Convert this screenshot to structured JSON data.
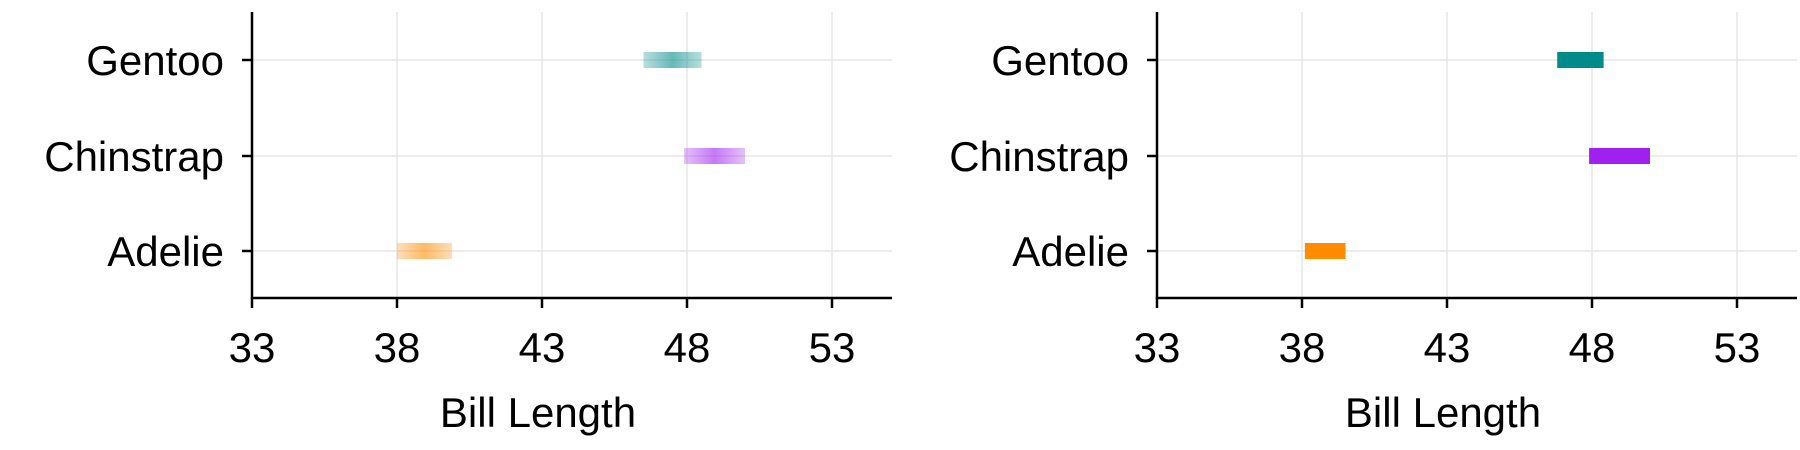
{
  "chart_data": [
    {
      "type": "interval",
      "style": "gradient",
      "xlabel": "Bill Length",
      "xlim": [
        33,
        55
      ],
      "xticks": [
        "33",
        "38",
        "43",
        "48",
        "53"
      ],
      "grid": true,
      "categories": [
        "Adelie",
        "Chinstrap",
        "Gentoo"
      ],
      "series": [
        {
          "category": "Adelie",
          "low": 38.0,
          "high": 39.9,
          "color": "#ff8c00"
        },
        {
          "category": "Chinstrap",
          "low": 47.9,
          "high": 50.0,
          "color": "#a020f0"
        },
        {
          "category": "Gentoo",
          "low": 46.5,
          "high": 48.5,
          "color": "#008b8b"
        }
      ]
    },
    {
      "type": "interval",
      "style": "solid",
      "xlabel": "Bill Length",
      "xlim": [
        33,
        55
      ],
      "xticks": [
        "33",
        "38",
        "43",
        "48",
        "53"
      ],
      "grid": true,
      "categories": [
        "Adelie",
        "Chinstrap",
        "Gentoo"
      ],
      "series": [
        {
          "category": "Adelie",
          "low": 38.1,
          "high": 39.5,
          "color": "#ff8c00"
        },
        {
          "category": "Chinstrap",
          "low": 47.9,
          "high": 50.0,
          "color": "#a020f0"
        },
        {
          "category": "Gentoo",
          "low": 46.8,
          "high": 48.4,
          "color": "#008b8b"
        }
      ]
    }
  ]
}
